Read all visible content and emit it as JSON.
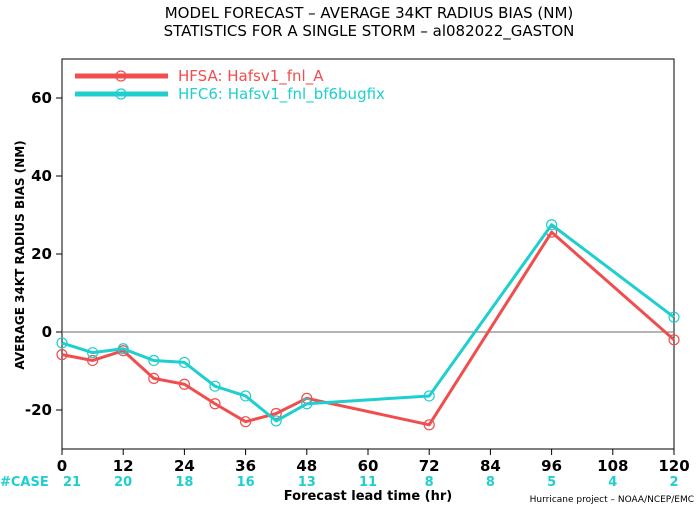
{
  "title_line1": "MODEL FORECAST – AVERAGE 34KT RADIUS BIAS (NM)",
  "title_line2": "STATISTICS FOR A SINGLE STORM – al082022_GASTON",
  "credit": "Hurricane project – NOAA/NCEP/EMC",
  "colors": {
    "hfsa": "#f04e4e",
    "hfc6": "#1fcfcf",
    "zero_line": "#888888",
    "axis": "#000000"
  },
  "chart_data": {
    "type": "line",
    "xlabel": "Forecast lead time (hr)",
    "ylabel": "AVERAGE 34KT RADIUS BIAS (NM)",
    "xlim": [
      0,
      120
    ],
    "ylim": [
      -30,
      70
    ],
    "xticks": [
      0,
      12,
      24,
      36,
      48,
      60,
      72,
      84,
      96,
      108,
      120
    ],
    "yticks": [
      -20,
      0,
      20,
      40,
      60
    ],
    "ytick_labels": [
      "-20",
      "0",
      "20",
      "40",
      "60"
    ],
    "zero_line": true,
    "legend_position": "top-left",
    "series": [
      {
        "name": "HFSA: Hafsv1_fnl_A",
        "color": "#f04e4e",
        "x": [
          0,
          6,
          12,
          18,
          24,
          30,
          36,
          42,
          48,
          72,
          96,
          120
        ],
        "y": [
          -5.8,
          -7.3,
          -4.8,
          -11.9,
          -13.4,
          -18.4,
          -23.0,
          -20.9,
          -17.0,
          -23.8,
          25.6,
          -2.0
        ]
      },
      {
        "name": "HFC6: Hafsv1_fnl_bf6bugfix",
        "color": "#1fcfcf",
        "x": [
          0,
          6,
          12,
          18,
          24,
          30,
          36,
          42,
          48,
          72,
          96,
          120
        ],
        "y": [
          -2.8,
          -5.3,
          -4.3,
          -7.3,
          -7.8,
          -13.9,
          -16.4,
          -22.8,
          -18.4,
          -16.4,
          27.5,
          3.8
        ]
      }
    ],
    "case_counts": {
      "label": "#CASE",
      "x": [
        0,
        12,
        24,
        36,
        48,
        60,
        72,
        84,
        96,
        108,
        120
      ],
      "counts": [
        "21",
        "20",
        "18",
        "16",
        "13",
        "11",
        "8",
        "8",
        "5",
        "4",
        "2"
      ]
    }
  }
}
